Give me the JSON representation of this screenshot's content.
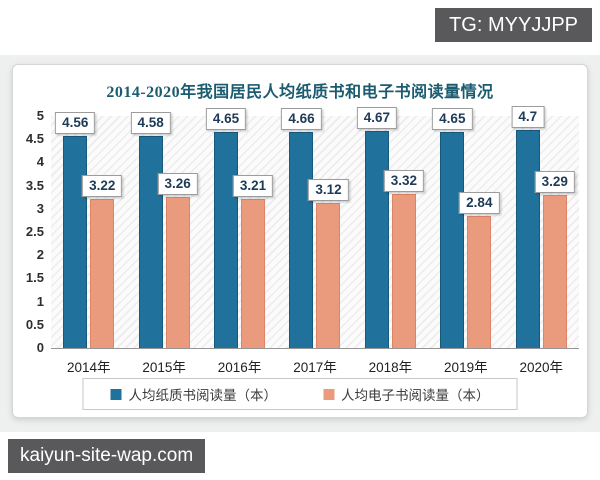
{
  "badges": {
    "top_right": "TG: MYYJJPP",
    "bottom_left": "kaiyun-site-wap.com"
  },
  "colors": {
    "paper_bar": "#20719b",
    "ebook_bar": "#eb9b7d",
    "title_text": "#1a5b70",
    "badge_background": "#59595b",
    "backdrop": "#eeefef"
  },
  "chart_data": {
    "type": "bar",
    "title": "2014-2020年我国居民人均纸质书和电子书阅读量情况",
    "categories": [
      "2014年",
      "2015年",
      "2016年",
      "2017年",
      "2018年",
      "2019年",
      "2020年"
    ],
    "series": [
      {
        "name": "人均纸质书阅读量（本）",
        "color": "#20719b",
        "values": [
          4.56,
          4.58,
          4.65,
          4.66,
          4.67,
          4.65,
          4.7
        ]
      },
      {
        "name": "人均电子书阅读量（本）",
        "color": "#eb9b7d",
        "values": [
          3.22,
          3.26,
          3.21,
          3.12,
          3.32,
          2.84,
          3.29
        ]
      }
    ],
    "xlabel": "",
    "ylabel": "",
    "ylim": [
      0,
      5
    ],
    "ytick_step": 0.5,
    "grid": false,
    "data_labels": true,
    "legend_position": "bottom"
  }
}
